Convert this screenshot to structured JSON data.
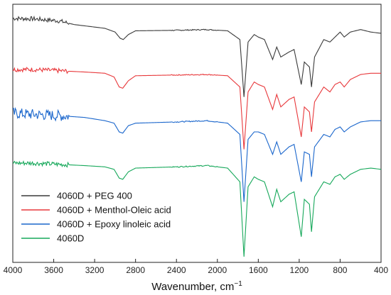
{
  "chart_data": {
    "type": "line",
    "xlabel": "Wavenumber, cm",
    "xlabel_superscript": "−1",
    "xlim": [
      4000,
      400
    ],
    "x_reversed": true,
    "y_ticks_shown": false,
    "grid": false,
    "legend_position": "bottom-left",
    "xticks": [
      "4000",
      "3600",
      "3200",
      "2800",
      "2400",
      "2000",
      "1600",
      "1200",
      "800",
      "400"
    ],
    "xtick_values": [
      4000,
      3600,
      3200,
      2800,
      2400,
      2000,
      1600,
      1200,
      800,
      400
    ],
    "series": [
      {
        "name": "4060D + PEG 400",
        "color": "#3a3a3a",
        "points": [
          [
            4000,
            0.955
          ],
          [
            3800,
            0.953
          ],
          [
            3550,
            0.945
          ],
          [
            3400,
            0.93
          ],
          [
            3200,
            0.92
          ],
          [
            3100,
            0.915
          ],
          [
            3000,
            0.9
          ],
          [
            2950,
            0.875
          ],
          [
            2920,
            0.87
          ],
          [
            2870,
            0.89
          ],
          [
            2800,
            0.905
          ],
          [
            2400,
            0.907
          ],
          [
            2100,
            0.91
          ],
          [
            1900,
            0.905
          ],
          [
            1780,
            0.87
          ],
          [
            1740,
            0.64
          ],
          [
            1700,
            0.86
          ],
          [
            1640,
            0.89
          ],
          [
            1600,
            0.88
          ],
          [
            1540,
            0.87
          ],
          [
            1460,
            0.79
          ],
          [
            1420,
            0.84
          ],
          [
            1380,
            0.8
          ],
          [
            1300,
            0.82
          ],
          [
            1250,
            0.83
          ],
          [
            1180,
            0.69
          ],
          [
            1150,
            0.78
          ],
          [
            1100,
            0.76
          ],
          [
            1080,
            0.68
          ],
          [
            1050,
            0.8
          ],
          [
            960,
            0.87
          ],
          [
            900,
            0.86
          ],
          [
            850,
            0.88
          ],
          [
            800,
            0.9
          ],
          [
            760,
            0.88
          ],
          [
            700,
            0.9
          ],
          [
            600,
            0.91
          ],
          [
            500,
            0.9
          ],
          [
            400,
            0.895
          ]
        ]
      },
      {
        "name": "4060D + Menthol-Oleic acid",
        "color": "#e8383b",
        "points": [
          [
            4000,
            0.75
          ],
          [
            3800,
            0.75
          ],
          [
            3550,
            0.745
          ],
          [
            3300,
            0.74
          ],
          [
            3100,
            0.735
          ],
          [
            3010,
            0.72
          ],
          [
            2960,
            0.68
          ],
          [
            2925,
            0.675
          ],
          [
            2870,
            0.705
          ],
          [
            2800,
            0.725
          ],
          [
            2400,
            0.728
          ],
          [
            2100,
            0.73
          ],
          [
            1900,
            0.725
          ],
          [
            1780,
            0.68
          ],
          [
            1740,
            0.43
          ],
          [
            1700,
            0.66
          ],
          [
            1640,
            0.7
          ],
          [
            1600,
            0.69
          ],
          [
            1540,
            0.68
          ],
          [
            1460,
            0.59
          ],
          [
            1420,
            0.65
          ],
          [
            1380,
            0.6
          ],
          [
            1300,
            0.63
          ],
          [
            1250,
            0.64
          ],
          [
            1180,
            0.48
          ],
          [
            1150,
            0.6
          ],
          [
            1100,
            0.58
          ],
          [
            1080,
            0.5
          ],
          [
            1050,
            0.62
          ],
          [
            960,
            0.68
          ],
          [
            900,
            0.66
          ],
          [
            850,
            0.69
          ],
          [
            800,
            0.7
          ],
          [
            760,
            0.68
          ],
          [
            700,
            0.71
          ],
          [
            600,
            0.73
          ],
          [
            500,
            0.735
          ],
          [
            400,
            0.735
          ]
        ]
      },
      {
        "name": "4060D + Epoxy linoleic acid",
        "color": "#1a66cc",
        "points": [
          [
            4000,
            0.575
          ],
          [
            3800,
            0.57
          ],
          [
            3550,
            0.565
          ],
          [
            3300,
            0.558
          ],
          [
            3100,
            0.545
          ],
          [
            3010,
            0.535
          ],
          [
            2960,
            0.5
          ],
          [
            2925,
            0.495
          ],
          [
            2870,
            0.525
          ],
          [
            2800,
            0.535
          ],
          [
            2400,
            0.54
          ],
          [
            2100,
            0.545
          ],
          [
            1900,
            0.535
          ],
          [
            1780,
            0.49
          ],
          [
            1740,
            0.22
          ],
          [
            1700,
            0.47
          ],
          [
            1640,
            0.5
          ],
          [
            1600,
            0.5
          ],
          [
            1540,
            0.49
          ],
          [
            1460,
            0.41
          ],
          [
            1420,
            0.46
          ],
          [
            1380,
            0.41
          ],
          [
            1300,
            0.44
          ],
          [
            1250,
            0.45
          ],
          [
            1180,
            0.3
          ],
          [
            1150,
            0.42
          ],
          [
            1100,
            0.41
          ],
          [
            1080,
            0.32
          ],
          [
            1050,
            0.44
          ],
          [
            960,
            0.49
          ],
          [
            900,
            0.48
          ],
          [
            850,
            0.51
          ],
          [
            800,
            0.52
          ],
          [
            760,
            0.5
          ],
          [
            700,
            0.52
          ],
          [
            600,
            0.54
          ],
          [
            500,
            0.545
          ],
          [
            400,
            0.545
          ]
        ]
      },
      {
        "name": "4060D",
        "color": "#16a85a",
        "points": [
          [
            4000,
            0.375
          ],
          [
            3800,
            0.375
          ],
          [
            3550,
            0.37
          ],
          [
            3300,
            0.365
          ],
          [
            3100,
            0.36
          ],
          [
            3010,
            0.35
          ],
          [
            2960,
            0.315
          ],
          [
            2925,
            0.31
          ],
          [
            2870,
            0.34
          ],
          [
            2800,
            0.355
          ],
          [
            2400,
            0.36
          ],
          [
            2100,
            0.365
          ],
          [
            1900,
            0.355
          ],
          [
            1780,
            0.3
          ],
          [
            1740,
            0.0
          ],
          [
            1700,
            0.28
          ],
          [
            1640,
            0.32
          ],
          [
            1600,
            0.31
          ],
          [
            1540,
            0.3
          ],
          [
            1460,
            0.2
          ],
          [
            1420,
            0.27
          ],
          [
            1380,
            0.22
          ],
          [
            1300,
            0.25
          ],
          [
            1250,
            0.26
          ],
          [
            1180,
            0.08
          ],
          [
            1150,
            0.23
          ],
          [
            1100,
            0.21
          ],
          [
            1080,
            0.1
          ],
          [
            1050,
            0.24
          ],
          [
            960,
            0.3
          ],
          [
            900,
            0.29
          ],
          [
            850,
            0.32
          ],
          [
            800,
            0.33
          ],
          [
            760,
            0.31
          ],
          [
            700,
            0.33
          ],
          [
            600,
            0.35
          ],
          [
            500,
            0.355
          ],
          [
            400,
            0.35
          ]
        ]
      }
    ]
  }
}
